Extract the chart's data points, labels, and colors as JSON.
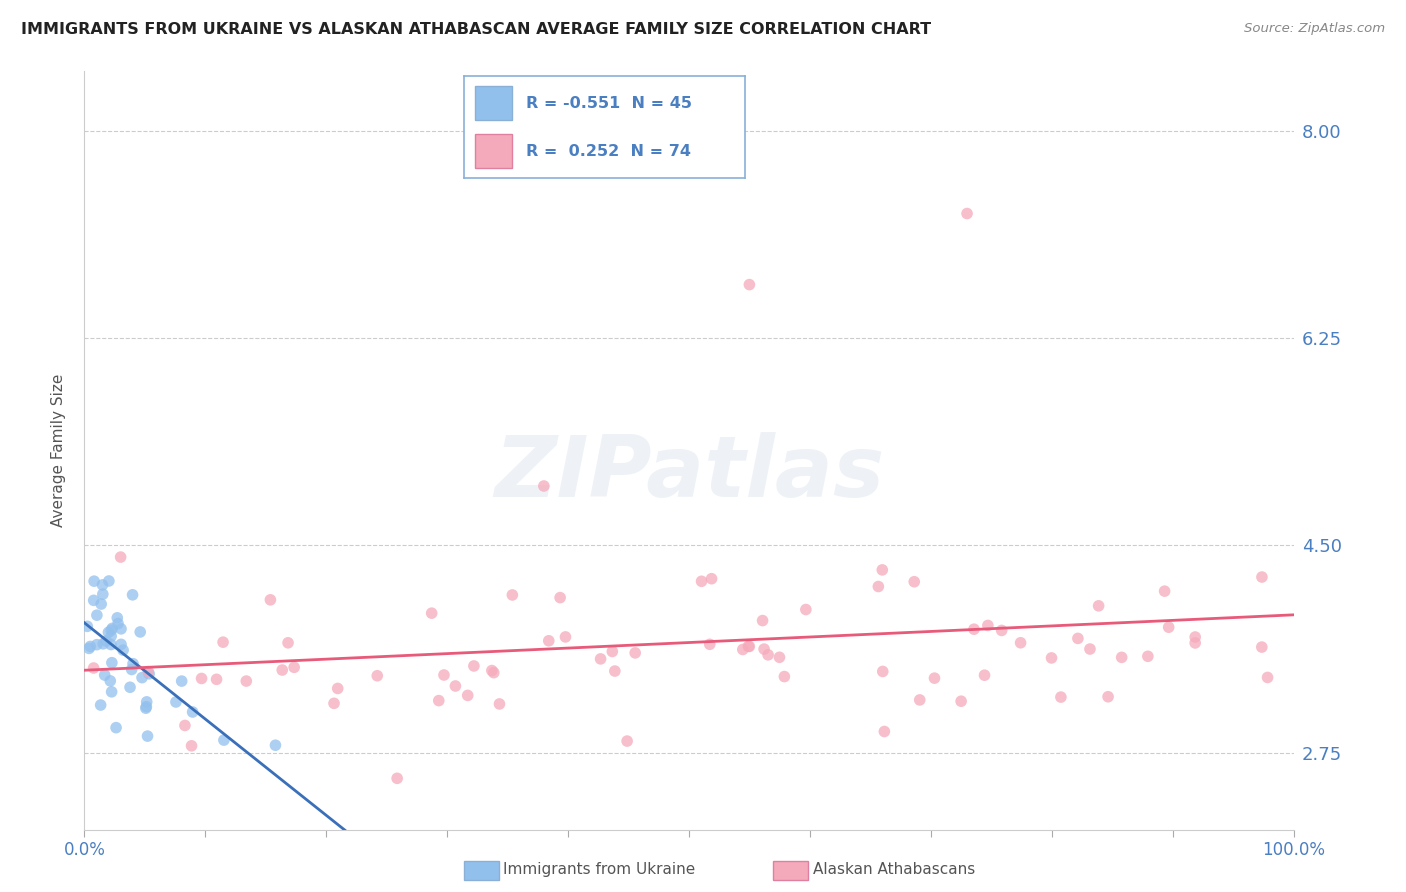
{
  "title": "IMMIGRANTS FROM UKRAINE VS ALASKAN ATHABASCAN AVERAGE FAMILY SIZE CORRELATION CHART",
  "source": "Source: ZipAtlas.com",
  "ylabel": "Average Family Size",
  "xlim": [
    0.0,
    100.0
  ],
  "ylim": [
    2.1,
    8.5
  ],
  "yticks": [
    2.75,
    4.5,
    6.25,
    8.0
  ],
  "xticks": [
    0.0,
    10.0,
    20.0,
    30.0,
    40.0,
    50.0,
    60.0,
    70.0,
    80.0,
    90.0,
    100.0
  ],
  "background_color": "#ffffff",
  "blue_color": "#92c0ed",
  "pink_color": "#f5aabb",
  "blue_line_color": "#3a6fba",
  "pink_line_color": "#e85a7a",
  "label_blue": "Immigrants from Ukraine",
  "label_pink": "Alaskan Athabascans",
  "blue_R": -0.551,
  "blue_N": 45,
  "pink_R": 0.252,
  "pink_N": 74,
  "title_color": "#222222",
  "source_color": "#888888",
  "axis_label_color": "#4a7fc1",
  "ylabel_color": "#555555"
}
